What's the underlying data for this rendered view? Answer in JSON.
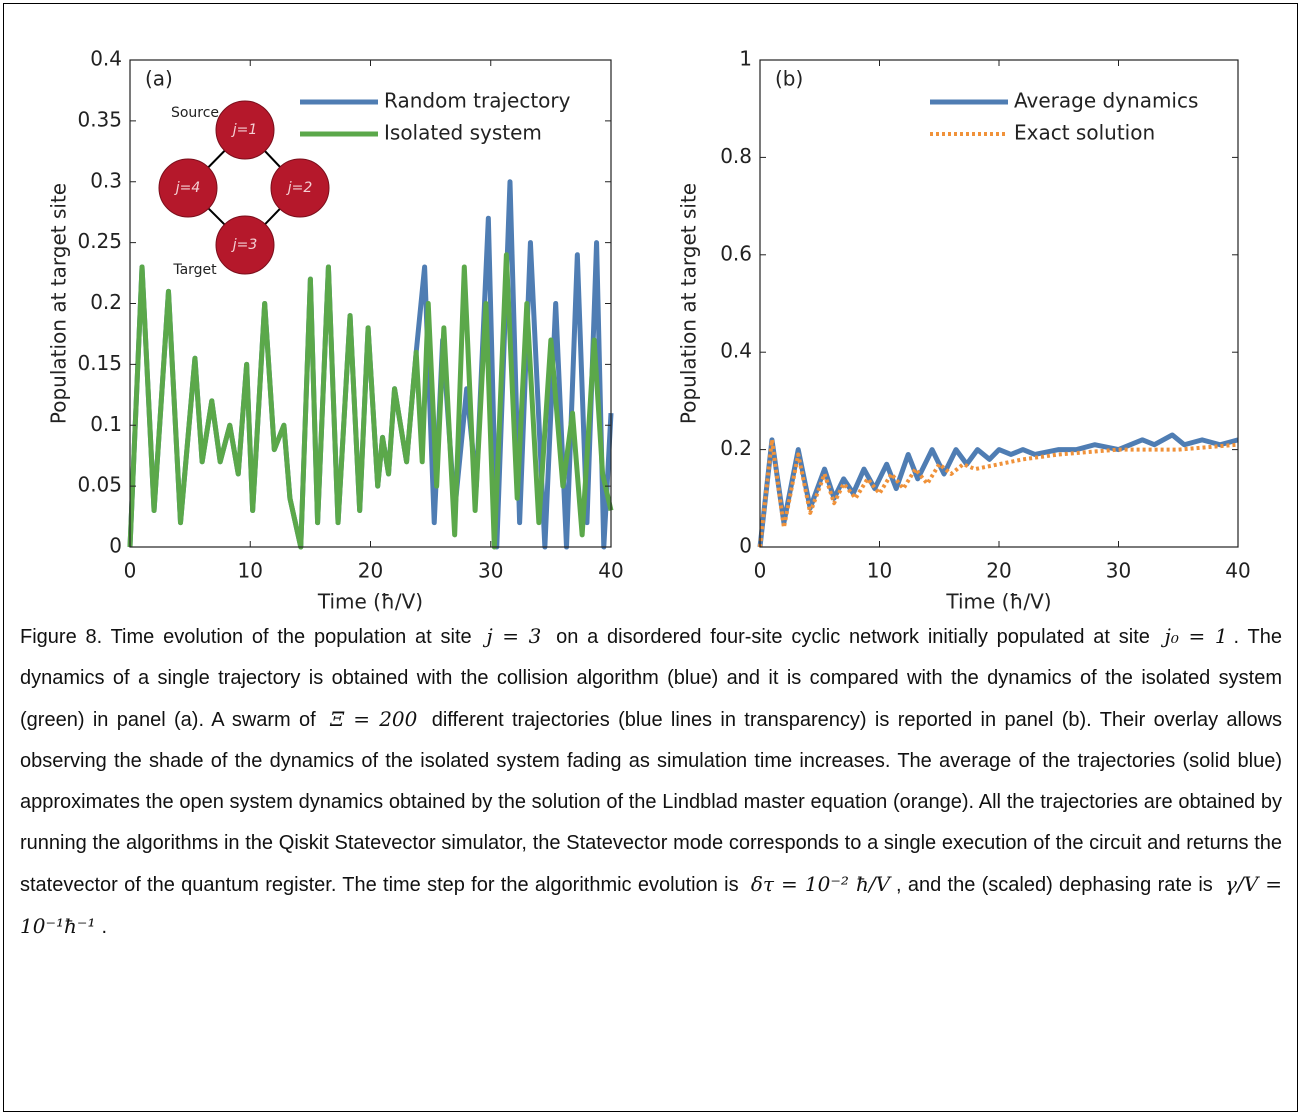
{
  "chart_data": [
    {
      "type": "line",
      "panel_label": "(a)",
      "x_label": "Time (ħ/V)",
      "y_label": "Population at target site",
      "xlim": [
        0,
        40
      ],
      "xticks": [
        0,
        10,
        20,
        30,
        40
      ],
      "ylim": [
        0,
        0.4
      ],
      "yticks": [
        0,
        0.05,
        0.1,
        0.15,
        0.2,
        0.25,
        0.3,
        0.35,
        0.4
      ],
      "inset": {
        "nodes": [
          "j=1",
          "j=2",
          "j=3",
          "j=4"
        ],
        "source": "Source",
        "target": "Target"
      },
      "series": [
        {
          "name": "Random trajectory",
          "color": "#4f7db3",
          "x": [
            0,
            1,
            2,
            3.2,
            4.2,
            5.4,
            6,
            6.8,
            7.5,
            8.3,
            9,
            9.7,
            10.2,
            11.2,
            12,
            12.8,
            13.3,
            14.2,
            15,
            15.6,
            16.5,
            17.3,
            18.3,
            19.1,
            19.8,
            20.6,
            21,
            21.5,
            22,
            23,
            23.8,
            24.5,
            25.3,
            26,
            27,
            28,
            28.8,
            29.8,
            30.5,
            31.6,
            32.4,
            33.3,
            34.5,
            35.4,
            36.3,
            37.2,
            38,
            38.8,
            39.4,
            40
          ],
          "values": [
            0,
            0.23,
            0.03,
            0.21,
            0.02,
            0.155,
            0.07,
            0.12,
            0.07,
            0.1,
            0.06,
            0.15,
            0.03,
            0.2,
            0.08,
            0.1,
            0.04,
            0,
            0.22,
            0.02,
            0.23,
            0.02,
            0.19,
            0.03,
            0.18,
            0.05,
            0.09,
            0.06,
            0.13,
            0.07,
            0.16,
            0.23,
            0.02,
            0.17,
            0.03,
            0.13,
            0.05,
            0.27,
            0,
            0.3,
            0.02,
            0.25,
            0,
            0.2,
            0,
            0.24,
            0.02,
            0.25,
            0,
            0.11
          ]
        },
        {
          "name": "Isolated system",
          "color": "#5ba84a",
          "x": [
            0,
            1,
            2,
            3.2,
            4.2,
            5.4,
            6,
            6.8,
            7.5,
            8.3,
            9,
            9.7,
            10.2,
            11.2,
            12,
            12.8,
            13.3,
            14.2,
            15,
            15.6,
            16.5,
            17.3,
            18.3,
            19.1,
            19.8,
            20.6,
            21,
            21.5,
            22,
            23,
            23.8,
            24.3,
            24.8,
            25.5,
            26.1,
            27,
            27.8,
            28.7,
            29.6,
            30.3,
            31.3,
            32.2,
            33,
            34,
            35,
            36,
            36.8,
            37.6,
            38.6,
            39.3,
            40
          ],
          "values": [
            0,
            0.23,
            0.03,
            0.21,
            0.02,
            0.155,
            0.07,
            0.12,
            0.07,
            0.1,
            0.06,
            0.15,
            0.03,
            0.2,
            0.08,
            0.1,
            0.04,
            0,
            0.22,
            0.02,
            0.23,
            0.02,
            0.19,
            0.03,
            0.18,
            0.05,
            0.09,
            0.06,
            0.13,
            0.07,
            0.16,
            0.07,
            0.2,
            0.05,
            0.18,
            0.01,
            0.23,
            0.03,
            0.2,
            0,
            0.24,
            0.04,
            0.2,
            0.02,
            0.17,
            0.05,
            0.11,
            0.01,
            0.17,
            0.06,
            0.03
          ]
        }
      ]
    },
    {
      "type": "line",
      "panel_label": "(b)",
      "x_label": "Time (ħ/V)",
      "y_label": "Population at target site",
      "xlim": [
        0,
        40
      ],
      "xticks": [
        0,
        10,
        20,
        30,
        40
      ],
      "ylim": [
        0,
        1
      ],
      "yticks": [
        0,
        0.2,
        0.4,
        0.6,
        0.8,
        1
      ],
      "series": [
        {
          "name": "Average dynamics",
          "color": "#4f7db3",
          "x": [
            0,
            1,
            2,
            3.2,
            4.2,
            5.4,
            6.2,
            7,
            7.8,
            8.7,
            9.6,
            10.6,
            11.4,
            12.4,
            13.2,
            14.4,
            15.4,
            16.4,
            17.3,
            18.2,
            19.2,
            20,
            21,
            22,
            23,
            25,
            26.5,
            28,
            30,
            32,
            33,
            34.5,
            35.5,
            37,
            38.5,
            40
          ],
          "values": [
            0,
            0.22,
            0.05,
            0.2,
            0.08,
            0.16,
            0.1,
            0.14,
            0.11,
            0.16,
            0.12,
            0.17,
            0.12,
            0.19,
            0.14,
            0.2,
            0.15,
            0.2,
            0.17,
            0.2,
            0.18,
            0.2,
            0.19,
            0.2,
            0.19,
            0.2,
            0.2,
            0.21,
            0.2,
            0.22,
            0.21,
            0.23,
            0.21,
            0.22,
            0.21,
            0.22
          ]
        },
        {
          "name": "Exact solution",
          "color": "#f0923a",
          "dashed": true,
          "x": [
            0,
            1,
            2,
            3.2,
            4.2,
            5.4,
            6.2,
            7,
            8,
            9,
            10,
            11,
            12,
            13,
            14,
            15,
            16,
            17,
            18,
            20,
            22,
            25,
            30,
            35,
            40
          ],
          "values": [
            0,
            0.22,
            0.04,
            0.19,
            0.07,
            0.15,
            0.09,
            0.13,
            0.1,
            0.14,
            0.11,
            0.15,
            0.12,
            0.16,
            0.13,
            0.17,
            0.15,
            0.17,
            0.16,
            0.17,
            0.18,
            0.19,
            0.2,
            0.2,
            0.21
          ]
        }
      ]
    }
  ],
  "caption": [
    "Figure 8. Time evolution of the population at site ",
    "j = 3",
    " on a disordered four-site cyclic network initially populated at site ",
    "j₀ = 1",
    ". The dynamics of a single trajectory is obtained with the collision algorithm (blue) and it is compared with the dynamics of the isolated system (green) in panel (a). A swarm of ",
    "Ξ = 200",
    " different trajectories (blue lines in transparency) is reported in panel (b). Their overlay allows observing the shade of the dynamics of the isolated system fading as simulation time increases. The average of the trajectories (solid blue) approximates the open system dynamics obtained by the solution of the Lindblad master equation (orange). All the trajectories are obtained by running the algorithms in the Qiskit Statevector simulator, the Statevector mode corresponds to a single execution of the circuit and returns the statevector of the quantum register. The time step for the algorithmic evolution is ",
    "δτ = 10⁻² ħ/V",
    ", and the (scaled) dephasing rate is ",
    "γ/V = 10⁻¹ħ⁻¹",
    "."
  ]
}
